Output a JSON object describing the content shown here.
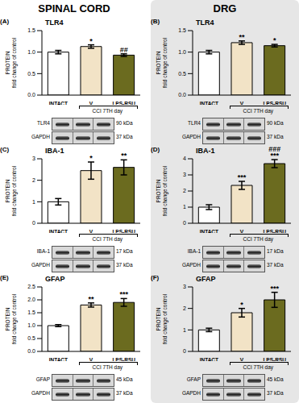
{
  "headers": [
    "SPINAL CORD",
    "DRG"
  ],
  "chart_data": [
    {
      "type": "bar",
      "panel": "(A)",
      "title": "TLR4",
      "y_label": [
        "PROTEIN",
        "fold change of control"
      ],
      "categories": [
        "INTACT",
        "V",
        "LPS-RSU"
      ],
      "values": [
        1.0,
        1.13,
        0.93
      ],
      "errors": [
        0.04,
        0.04,
        0.03
      ],
      "significance": [
        [],
        [
          "*"
        ],
        [
          "##"
        ]
      ],
      "group_label": "CCI 7TH day",
      "colors": [
        "#ffffff",
        "#f2e3c6",
        "#6b6b1f"
      ],
      "ylim": [
        0,
        1.5
      ],
      "yticks": [
        {
          "value": 0,
          "label": "0.0"
        },
        {
          "value": 0.5,
          "label": "0.5"
        },
        {
          "value": 1,
          "label": "1.0"
        },
        {
          "value": 1.5,
          "label": "1.5"
        }
      ],
      "blot": [
        {
          "label": "TLR4",
          "size": "90 kDa"
        },
        {
          "label": "GAPDH",
          "size": "37 kDa"
        }
      ]
    },
    {
      "type": "bar",
      "panel": "(B)",
      "title": "TLR4",
      "y_label": [
        "PROTEIN",
        "fold change of control"
      ],
      "categories": [
        "INTACT",
        "V",
        "LPS-RSU"
      ],
      "values": [
        1.0,
        1.22,
        1.15
      ],
      "errors": [
        0.04,
        0.04,
        0.03
      ],
      "significance": [
        [],
        [
          "**"
        ],
        [
          "*"
        ]
      ],
      "group_label": "CCI 7TH day",
      "colors": [
        "#ffffff",
        "#f2e3c6",
        "#6b6b1f"
      ],
      "ylim": [
        0,
        1.5
      ],
      "yticks": [
        {
          "value": 0,
          "label": "0.0"
        },
        {
          "value": 0.5,
          "label": "0.5"
        },
        {
          "value": 1,
          "label": "1.0"
        },
        {
          "value": 1.5,
          "label": "1.5"
        }
      ],
      "blot": [
        {
          "label": "TLR4",
          "size": "90 kDa"
        },
        {
          "label": "GAPDH",
          "size": "37 kDa"
        }
      ]
    },
    {
      "type": "bar",
      "panel": "(C)",
      "title": "IBA-1",
      "y_label": [
        "PROTEIN",
        "fold change of control"
      ],
      "categories": [
        "INTACT",
        "V",
        "LPS-RSU"
      ],
      "values": [
        1.0,
        2.45,
        2.6
      ],
      "errors": [
        0.15,
        0.4,
        0.35
      ],
      "significance": [
        [],
        [
          "*"
        ],
        [
          "**"
        ]
      ],
      "group_label": "CCI 7TH day",
      "colors": [
        "#ffffff",
        "#f2e3c6",
        "#6b6b1f"
      ],
      "ylim": [
        0,
        3
      ],
      "yticks": [
        0,
        1,
        2,
        3
      ],
      "blot": [
        {
          "label": "IBA-1",
          "size": "17 kDa"
        },
        {
          "label": "GAPDH",
          "size": "37 kDa"
        }
      ]
    },
    {
      "type": "bar",
      "panel": "(D)",
      "title": "IBA-1",
      "y_label": [
        "PROTEIN",
        "fold change of control"
      ],
      "categories": [
        "INTACT",
        "V",
        "LPS-RSU"
      ],
      "values": [
        1.0,
        2.35,
        3.7
      ],
      "errors": [
        0.15,
        0.25,
        0.25
      ],
      "significance": [
        [],
        [
          "***"
        ],
        [
          "***",
          "###"
        ]
      ],
      "group_label": "CCI 7TH day",
      "colors": [
        "#ffffff",
        "#f2e3c6",
        "#6b6b1f"
      ],
      "ylim": [
        0,
        4
      ],
      "yticks": [
        0,
        1,
        2,
        3,
        4
      ],
      "blot": [
        {
          "label": "IBA-1",
          "size": "17 kDa"
        },
        {
          "label": "GAPDH",
          "size": "37 kDa"
        }
      ]
    },
    {
      "type": "bar",
      "panel": "(E)",
      "title": "GFAP",
      "y_label": [
        "PROTEIN",
        "fold change of control"
      ],
      "categories": [
        "INTACT",
        "V",
        "LPS-RSU"
      ],
      "values": [
        1.0,
        1.8,
        1.9
      ],
      "errors": [
        0.04,
        0.08,
        0.15
      ],
      "significance": [
        [],
        [
          "**"
        ],
        [
          "***"
        ]
      ],
      "group_label": "CCI 7TH day",
      "colors": [
        "#ffffff",
        "#f2e3c6",
        "#6b6b1f"
      ],
      "ylim": [
        0,
        2.5
      ],
      "yticks": [
        {
          "value": 0,
          "label": "0.0"
        },
        {
          "value": 0.5,
          "label": "0.5"
        },
        {
          "value": 1,
          "label": "1.0"
        },
        {
          "value": 1.5,
          "label": "1.5"
        },
        {
          "value": 2,
          "label": "2.0"
        },
        {
          "value": 2.5,
          "label": "2.5"
        }
      ],
      "blot": [
        {
          "label": "GFAP",
          "size": "45 kDa"
        },
        {
          "label": "GAPDH",
          "size": "37 kDa"
        }
      ]
    },
    {
      "type": "bar",
      "panel": "(F)",
      "title": "GFAP",
      "y_label": [
        "PROTEIN",
        "fold change of control"
      ],
      "categories": [
        "INTACT",
        "V",
        "LPS-RSU"
      ],
      "values": [
        1.0,
        1.8,
        2.4
      ],
      "errors": [
        0.08,
        0.2,
        0.35
      ],
      "significance": [
        [],
        [
          "*"
        ],
        [
          "***"
        ]
      ],
      "group_label": "CCI 7TH day",
      "colors": [
        "#ffffff",
        "#f2e3c6",
        "#6b6b1f"
      ],
      "ylim": [
        0,
        3
      ],
      "yticks": [
        0,
        1,
        2,
        3
      ],
      "blot": [
        {
          "label": "GFAP",
          "size": "45 kDa"
        },
        {
          "label": "GAPDH",
          "size": "37 kDa"
        }
      ]
    }
  ]
}
